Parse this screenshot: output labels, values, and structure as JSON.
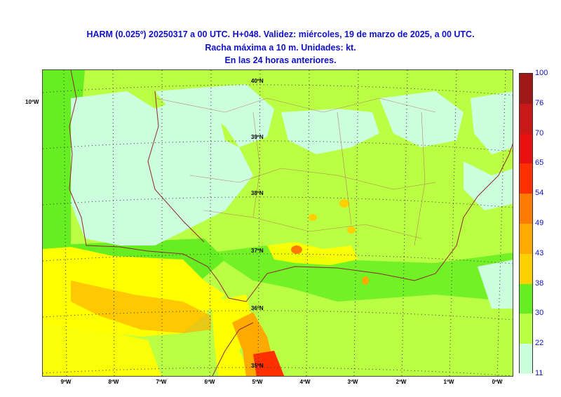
{
  "title": {
    "line1": "HARM (0.025º) 20250317 a 00 UTC. H+048. Validez: miércoles, 19 de marzo de 2025, a 00 UTC.",
    "line2": "Racha máxima a 10 m. Unidades: kt.",
    "line3": "En las 24 horas anteriores."
  },
  "map": {
    "latitude_labels": [
      "40ºN",
      "39ºN",
      "38ºN",
      "37ºN",
      "36ºN",
      "35ºN"
    ],
    "longitude_labels": [
      "9ºW",
      "8ºW",
      "7ºW",
      "6ºW",
      "5ºW",
      "4ºW",
      "3ºW",
      "2ºW",
      "1ºW",
      "0ºW"
    ],
    "side_label": "10ºW"
  },
  "legend": {
    "ticks": [
      "100",
      "76",
      "70",
      "65",
      "54",
      "49",
      "43",
      "38",
      "30",
      "22",
      "11"
    ],
    "colors": [
      "#a01818",
      "#c81818",
      "#e81010",
      "#ff3000",
      "#ff7a00",
      "#ffaa00",
      "#ffd000",
      "#ffff00",
      "#66ee22",
      "#bbff44",
      "#ccffdd"
    ]
  },
  "colors": {
    "title": "#1010c8",
    "very_light": "#ccffdd",
    "light_green": "#bbff44",
    "green": "#66ee22",
    "yellow": "#ffff00",
    "orange": "#ffaa00",
    "red": "#ff3000"
  }
}
